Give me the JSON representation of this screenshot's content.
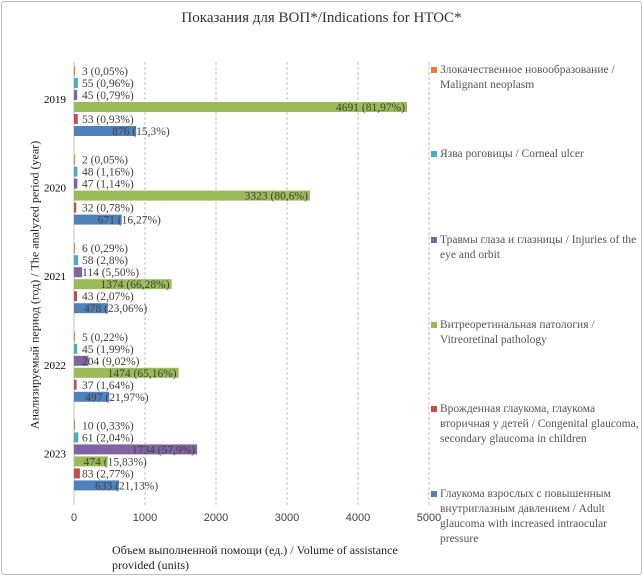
{
  "chart_data": {
    "type": "bar",
    "orientation": "horizontal",
    "title": "Показания для ВОП*/Indications for HTOC*",
    "xlabel": "Объем выполненной помощи (ед.) / Volume of assistance provided (units)",
    "ylabel": "Анализируемый период (год) / The analyzed period (year)",
    "xlim": [
      0,
      5000
    ],
    "xticks": [
      "0",
      "1000",
      "2000",
      "3000",
      "4000",
      "5000"
    ],
    "grid": true,
    "legend_position": "right",
    "categories": [
      "2019",
      "2020",
      "2021",
      "2022",
      "2023"
    ],
    "series": [
      {
        "name": "Злокачественное новообразование  / Malignant neoplasm",
        "color": "#ED7D31",
        "values": [
          3,
          2,
          6,
          5,
          10
        ],
        "labels": [
          "3 (0,05%)",
          "2 (0,05%)",
          "6 (0,29%)",
          "5 (0,22%)",
          "10 (0,33%)"
        ]
      },
      {
        "name": "Язва роговицы / Corneal ulcer",
        "color": "#4BACC6",
        "values": [
          55,
          48,
          58,
          45,
          61
        ],
        "labels": [
          "55 (0,96%)",
          "48 (1,16%)",
          "58 (2,8%)",
          "45 (1,99%)",
          "61 (2,04%)"
        ]
      },
      {
        "name": "Травмы глаза и глазницы / Injuries of the eye and orbit",
        "color": "#8064A2",
        "values": [
          45,
          47,
          114,
          204,
          1734
        ],
        "labels": [
          "45 (0,79%)",
          "47 (1,14%)",
          "114 (5,50%)",
          "204 (9,02%)",
          "1734 (57,9%)"
        ]
      },
      {
        "name": "Витреоретинальная патология / Vitreoretinal pathology",
        "color": "#9BBB59",
        "values": [
          4691,
          3323,
          1374,
          1474,
          474
        ],
        "labels": [
          "4691 (81,97%)",
          "3323 (80,6%)",
          "1374 (66,28%)",
          "1474 (65,16%)",
          "474 (15,83%)"
        ]
      },
      {
        "name": "Врожденная глаукома, глаукома вторичная у детей / Congenital glaucoma, secondary glaucoma in children",
        "color": "#C0504D",
        "values": [
          53,
          32,
          43,
          37,
          83
        ],
        "labels": [
          "53 (0,93%)",
          "32 (0,78%)",
          "43 (2,07%)",
          "37 (1,64%)",
          "83 (2,77%)"
        ]
      },
      {
        "name": "Глаукома взрослых с повышенным внутриглазным давлением / Adult glaucoma with increased intraocular pressure",
        "color": "#4F81BD",
        "values": [
          876,
          671,
          478,
          497,
          633
        ],
        "labels": [
          "876 (15,3%)",
          "671 (16,27%)",
          "478 (23,06%)",
          "497 (21,97%)",
          "633 (21,13%)"
        ]
      }
    ]
  }
}
